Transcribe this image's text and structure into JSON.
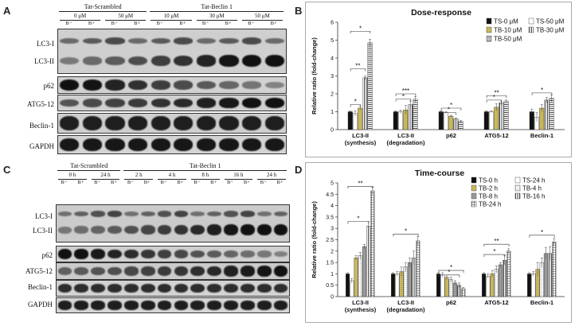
{
  "panels": {
    "A": {
      "letter": "A"
    },
    "B": {
      "letter": "B"
    },
    "C": {
      "letter": "C"
    },
    "D": {
      "letter": "D"
    }
  },
  "blotA": {
    "group_scr": "Tat-Scrambled",
    "group_bec": "Tat-Beclin 1",
    "concs": [
      "0 μM",
      "50 μM",
      "10 μM",
      "30 μM",
      "50 μM"
    ],
    "lanes": [
      "B−",
      "B+",
      "B−",
      "B+",
      "B−",
      "B+",
      "B−",
      "B+",
      "B−",
      "B+"
    ],
    "rows": [
      "LC3-I",
      "LC3-II",
      "p62",
      "ATG5-12",
      "Beclin-1",
      "GAPDH"
    ]
  },
  "blotC": {
    "group_scr": "Tat-Scrambled",
    "group_bec": "Tat-Beclin 1",
    "times": [
      "0 h",
      "24 h",
      "2 h",
      "4 h",
      "8 h",
      "16 h",
      "24 h"
    ],
    "lanes": [
      "B−",
      "B+",
      "B−",
      "B+",
      "B−",
      "B+",
      "B−",
      "B+",
      "B−",
      "B+",
      "B−",
      "B+",
      "B−",
      "B+"
    ],
    "rows": [
      "LC3-I",
      "LC3-II",
      "p62",
      "ATG5-12",
      "Beclin-1",
      "GAPDH"
    ]
  },
  "colors": {
    "black": "#111111",
    "olive": "#c8b75a",
    "grey": "#9a9a9a"
  },
  "chart_data": [
    {
      "type": "bar",
      "title": "Dose-response",
      "ylabel": "Relative ratio (fold-change)",
      "ylim": [
        0,
        6
      ],
      "yticks": [
        0,
        1,
        2,
        3,
        4,
        5,
        6
      ],
      "grid": false,
      "legend_position": "top-right",
      "categories": [
        [
          "LC3-II",
          "(synthesis)"
        ],
        [
          "LC3-II",
          "(degradation)"
        ],
        [
          "p62",
          ""
        ],
        [
          "ATG5-12",
          ""
        ],
        [
          "Beclin-1",
          ""
        ]
      ],
      "series": [
        {
          "name": "TS-0 μM",
          "pattern": "solid-black",
          "values": [
            1.0,
            1.0,
            1.0,
            1.0,
            1.0
          ],
          "err": [
            0.05,
            0.05,
            0.05,
            0.05,
            0.15
          ]
        },
        {
          "name": "TS-50 μM",
          "pattern": "white",
          "values": [
            0.9,
            1.0,
            0.95,
            1.0,
            0.7
          ],
          "err": [
            0.15,
            0.1,
            0.05,
            0.05,
            0.25
          ]
        },
        {
          "name": "TB-10 μM",
          "pattern": "olive",
          "values": [
            1.2,
            1.1,
            0.75,
            1.25,
            1.2
          ],
          "err": [
            0.1,
            0.25,
            0.05,
            0.2,
            0.2
          ]
        },
        {
          "name": "TB-30 μM",
          "pattern": "vlines",
          "values": [
            2.9,
            1.4,
            0.6,
            1.5,
            1.65
          ],
          "err": [
            0.1,
            0.2,
            0.05,
            0.1,
            0.15
          ]
        },
        {
          "name": "TB-50 μM",
          "pattern": "hlines",
          "values": [
            4.85,
            1.7,
            0.45,
            1.6,
            1.75
          ],
          "err": [
            0.2,
            0.15,
            0.05,
            0.05,
            0.2
          ]
        }
      ],
      "significance": [
        {
          "cat": 0,
          "from": 0,
          "to": 4,
          "label": "*",
          "y": 5.5
        },
        {
          "cat": 0,
          "from": 0,
          "to": 3,
          "label": "**",
          "y": 3.4
        },
        {
          "cat": 0,
          "from": 0,
          "to": 2,
          "label": "*",
          "y": 1.4
        },
        {
          "cat": 1,
          "from": 0,
          "to": 4,
          "label": "***",
          "y": 2.0
        },
        {
          "cat": 1,
          "from": 0,
          "to": 3,
          "label": "*",
          "y": 1.7
        },
        {
          "cat": 2,
          "from": 0,
          "to": 4,
          "label": "*",
          "y": 1.2
        },
        {
          "cat": 2,
          "from": 0,
          "to": 3,
          "label": "*",
          "y": 0.95
        },
        {
          "cat": 3,
          "from": 0,
          "to": 4,
          "label": "**",
          "y": 1.9
        },
        {
          "cat": 3,
          "from": 0,
          "to": 3,
          "label": "*",
          "y": 1.65
        },
        {
          "cat": 4,
          "from": 0,
          "to": 4,
          "label": "*",
          "y": 2.05
        }
      ]
    },
    {
      "type": "bar",
      "title": "Time-course",
      "ylabel": "Relative ratio (fold-change)",
      "ylim": [
        0,
        5
      ],
      "yticks": [
        0,
        0.5,
        1,
        1.5,
        2,
        2.5,
        3,
        3.5,
        4,
        4.5,
        5
      ],
      "grid": false,
      "legend_position": "top-right",
      "categories": [
        [
          "LC3-II",
          "(synthesis)"
        ],
        [
          "LC3-II",
          "(degradation)"
        ],
        [
          "p62",
          ""
        ],
        [
          "ATG5-12",
          ""
        ],
        [
          "Beclin-1",
          ""
        ]
      ],
      "series": [
        {
          "name": "TS-0 h",
          "pattern": "solid-black",
          "values": [
            1.0,
            1.0,
            1.0,
            1.0,
            1.0
          ],
          "err": [
            0.05,
            0.05,
            0.05,
            0.05,
            0.05
          ]
        },
        {
          "name": "TS-24 h",
          "pattern": "white",
          "values": [
            0.7,
            1.0,
            0.95,
            0.9,
            1.0
          ],
          "err": [
            0.1,
            0.1,
            0.1,
            0.1,
            0.1
          ]
        },
        {
          "name": "TB-2 h",
          "pattern": "olive",
          "values": [
            1.7,
            1.1,
            0.85,
            1.0,
            1.2
          ],
          "err": [
            0.1,
            0.2,
            0.1,
            0.15,
            0.3
          ]
        },
        {
          "name": "TB-4 h",
          "pattern": "dots",
          "values": [
            1.8,
            1.3,
            0.75,
            1.2,
            1.5
          ],
          "err": [
            0.15,
            0.2,
            0.1,
            0.15,
            0.2
          ]
        },
        {
          "name": "TB-8 h",
          "pattern": "grey",
          "values": [
            2.2,
            1.5,
            0.6,
            1.4,
            1.9
          ],
          "err": [
            0.1,
            0.2,
            0.1,
            0.1,
            0.25
          ]
        },
        {
          "name": "TB-16 h",
          "pattern": "vlines",
          "values": [
            3.1,
            1.7,
            0.5,
            1.6,
            1.9
          ],
          "err": [
            0.2,
            0.3,
            0.1,
            0.2,
            0.3
          ]
        },
        {
          "name": "TB-24 h",
          "pattern": "grid",
          "values": [
            4.65,
            2.45,
            0.35,
            2.0,
            2.4
          ],
          "err": [
            0.15,
            0.2,
            0.05,
            0.1,
            0.15
          ]
        }
      ],
      "significance": [
        {
          "cat": 0,
          "from": 0,
          "to": 6,
          "label": "**",
          "y": 4.85
        },
        {
          "cat": 0,
          "from": 0,
          "to": 5,
          "label": "*",
          "y": 3.3
        },
        {
          "cat": 1,
          "from": 0,
          "to": 6,
          "label": "*",
          "y": 2.75
        },
        {
          "cat": 2,
          "from": 0,
          "to": 6,
          "label": "*",
          "y": 1.15
        },
        {
          "cat": 2,
          "from": 0,
          "to": 5,
          "label": "*",
          "y": 0.95
        },
        {
          "cat": 3,
          "from": 0,
          "to": 6,
          "label": "**",
          "y": 2.3
        },
        {
          "cat": 3,
          "from": 0,
          "to": 5,
          "label": "*",
          "y": 1.85
        },
        {
          "cat": 4,
          "from": 0,
          "to": 6,
          "label": "*",
          "y": 2.7
        }
      ]
    }
  ]
}
